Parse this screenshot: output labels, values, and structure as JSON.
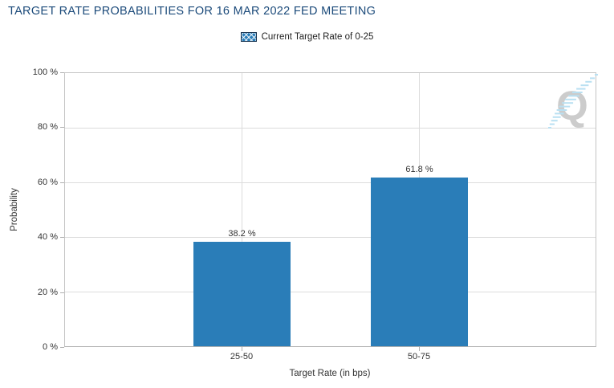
{
  "chart_data": {
    "type": "bar",
    "title": "TARGET RATE PROBABILITIES FOR 16 MAR 2022 FED MEETING",
    "categories": [
      "25-50",
      "50-75"
    ],
    "values": [
      38.2,
      61.8
    ],
    "value_labels": [
      "38.2 %",
      "61.8 %"
    ],
    "xlabel": "Target Rate (in bps)",
    "ylabel": "Probability",
    "ylim": [
      0,
      100
    ],
    "ytick_labels": [
      "0 %",
      "20 %",
      "40 %",
      "60 %",
      "80 %",
      "100 %"
    ],
    "legend": [
      {
        "label": "Current Target Rate of 0-25",
        "swatch": "blue-crosshatch"
      }
    ],
    "legend_position": "top-center",
    "grid": true,
    "bar_color": "#2A7DB8"
  },
  "watermark": {
    "letter": "Q"
  },
  "colors": {
    "bar": "#2A7DB8",
    "title_text": "#1B4A7A",
    "grid": "#DCDCDC",
    "plot_border": "#C4C4C4",
    "axis_text": "#333333",
    "watermark_gray": "#CCCCCC",
    "watermark_blue": "#B9E0F2"
  }
}
